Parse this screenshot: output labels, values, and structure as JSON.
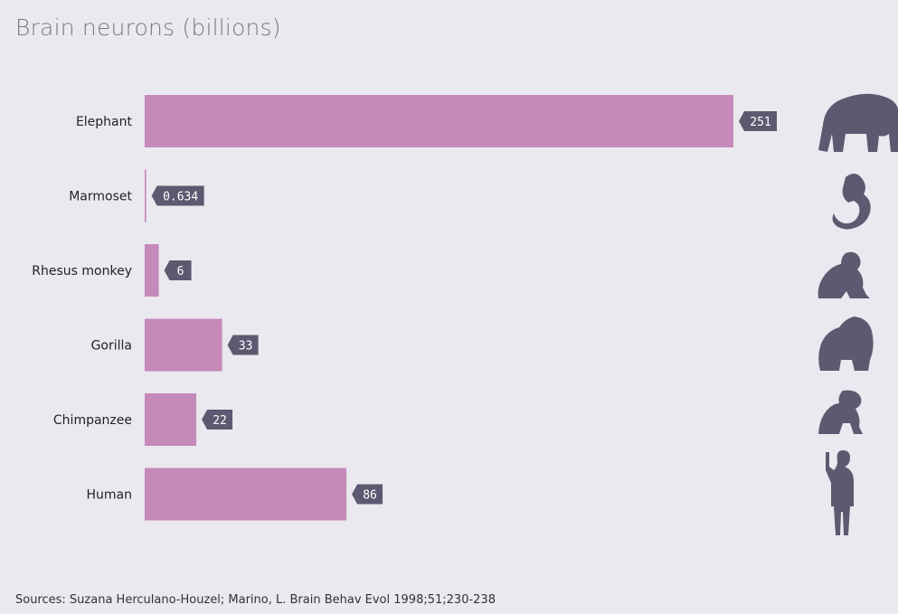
{
  "chart_data": {
    "type": "bar",
    "orientation": "horizontal",
    "title": "Brain neurons (billions)",
    "categories": [
      "Elephant",
      "Marmoset",
      "Rhesus monkey",
      "Gorilla",
      "Chimpanzee",
      "Human"
    ],
    "values": [
      251,
      0.634,
      6,
      33,
      22,
      86
    ],
    "value_labels": [
      "251",
      "0.634",
      "6",
      "33",
      "22",
      "86"
    ],
    "icons": [
      "elephant-icon",
      "marmoset-icon",
      "rhesus-monkey-icon",
      "gorilla-icon",
      "chimpanzee-icon",
      "human-icon"
    ],
    "xlim": [
      0,
      251
    ],
    "grid": false,
    "legend": "none"
  },
  "colors": {
    "background": "#eae9ef",
    "bar": "#c589ba",
    "label_box": "#5b5a70",
    "silhouette": "#5b5a70"
  },
  "source": "Sources: Suzana Herculano-Houzel; Marino, L. Brain Behav Evol 1998;51;230-238"
}
